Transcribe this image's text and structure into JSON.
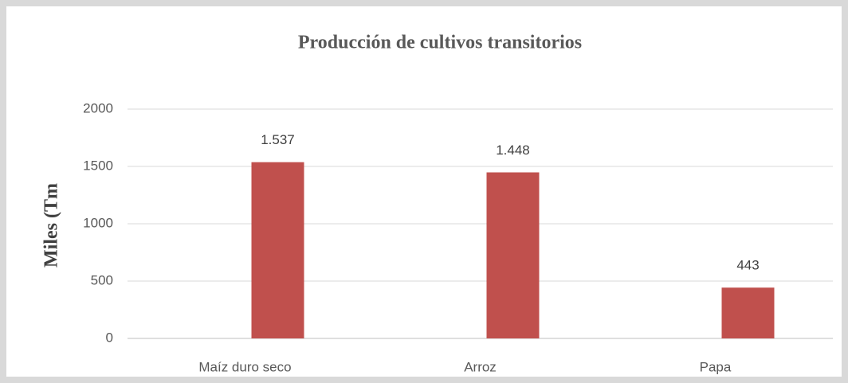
{
  "chart_data": {
    "type": "bar",
    "title": "Producción de cultivos transitorios",
    "y_label": "Miles (Tm",
    "categories": [
      "Maíz duro seco",
      "Arroz",
      "Papa"
    ],
    "values": [
      1537,
      1448,
      443
    ],
    "value_labels": [
      "1.537",
      "1.448",
      "443"
    ],
    "color": "#c0504d",
    "ylim": [
      0,
      2000
    ],
    "yticks": [
      0,
      500,
      1000,
      1500,
      2000
    ],
    "grid": true
  }
}
